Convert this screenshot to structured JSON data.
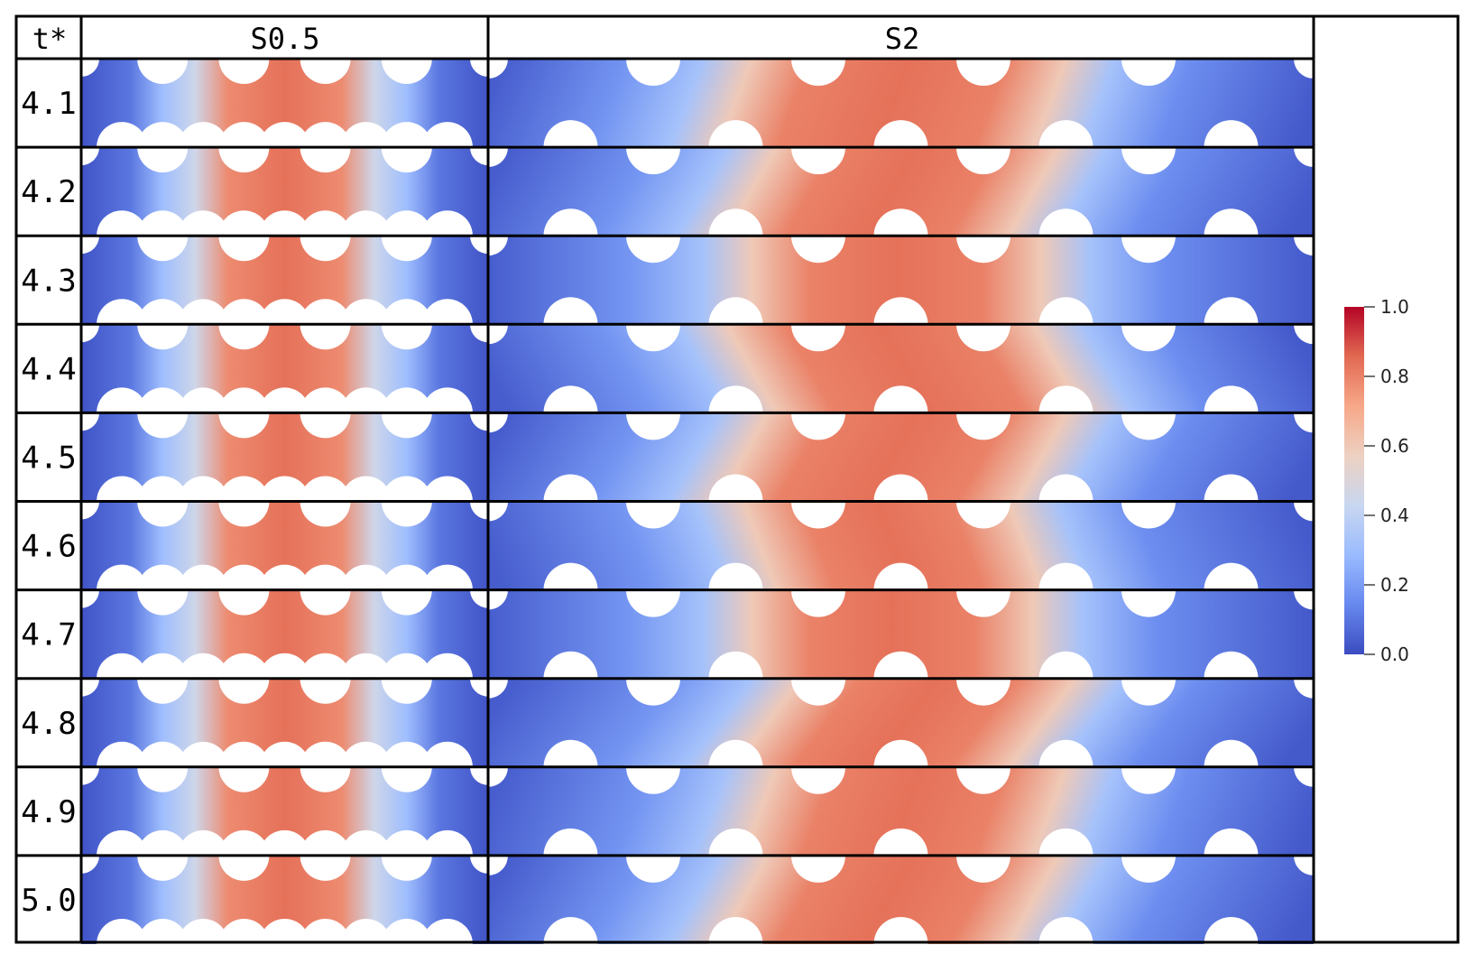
{
  "table": {
    "headers": {
      "time_label": "t*",
      "case_a": "S0.5",
      "case_b": "S2"
    },
    "rows": [
      {
        "t": "4.1",
        "a": {
          "lo": 0.06,
          "hi": 0.84
        },
        "b": {
          "x0": 0.27,
          "x1": 0.71,
          "tilt": 0.02
        }
      },
      {
        "t": "4.2",
        "a": {
          "lo": 0.06,
          "hi": 0.84
        },
        "b": {
          "x0": 0.29,
          "x1": 0.69,
          "tilt": 0.03
        }
      },
      {
        "t": "4.3",
        "a": {
          "lo": 0.06,
          "hi": 0.84
        },
        "b": {
          "x0": 0.29,
          "x1": 0.7,
          "tilt": 0.0
        }
      },
      {
        "t": "4.4",
        "a": {
          "lo": 0.06,
          "hi": 0.84
        },
        "b": {
          "x0": 0.29,
          "x1": 0.72,
          "tilt": -0.03
        }
      },
      {
        "t": "4.5",
        "a": {
          "lo": 0.06,
          "hi": 0.84
        },
        "b": {
          "x0": 0.28,
          "x1": 0.7,
          "tilt": 0.03
        }
      },
      {
        "t": "4.6",
        "a": {
          "lo": 0.06,
          "hi": 0.84
        },
        "b": {
          "x0": 0.3,
          "x1": 0.68,
          "tilt": -0.02
        }
      },
      {
        "t": "4.7",
        "a": {
          "lo": 0.06,
          "hi": 0.84
        },
        "b": {
          "x0": 0.29,
          "x1": 0.69,
          "tilt": 0.0
        }
      },
      {
        "t": "4.8",
        "a": {
          "lo": 0.06,
          "hi": 0.84
        },
        "b": {
          "x0": 0.31,
          "x1": 0.7,
          "tilt": 0.04
        }
      },
      {
        "t": "4.9",
        "a": {
          "lo": 0.06,
          "hi": 0.84
        },
        "b": {
          "x0": 0.3,
          "x1": 0.71,
          "tilt": 0.02
        }
      },
      {
        "t": "5.0",
        "a": {
          "lo": 0.06,
          "hi": 0.84
        },
        "b": {
          "x0": 0.28,
          "x1": 0.69,
          "tilt": 0.03
        }
      }
    ]
  },
  "colorbar": {
    "min": 0.0,
    "max": 1.0,
    "ticks": [
      "1.0",
      "0.8",
      "0.6",
      "0.4",
      "0.2",
      "0.0"
    ],
    "colormap": [
      "#3b4cc0",
      "#6788ee",
      "#9abbff",
      "#c9d7f0",
      "#edd1c2",
      "#f7a889",
      "#e26952",
      "#b40426"
    ]
  },
  "colors": {
    "border": "#000000",
    "obstacle": "#ffffff"
  }
}
